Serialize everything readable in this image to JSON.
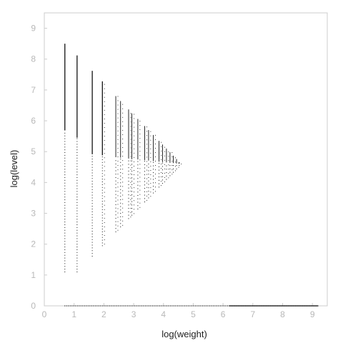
{
  "chart_data": {
    "type": "scatter",
    "title": "",
    "xlabel": "log(weight)",
    "ylabel": "log(level)",
    "xlim": [
      0,
      9.5
    ],
    "ylim": [
      0,
      9.5
    ],
    "xticks": [
      "0",
      "1",
      "2",
      "3",
      "4",
      "5",
      "6",
      "7",
      "8",
      "9"
    ],
    "yticks": [
      "0",
      "1",
      "2",
      "3",
      "4",
      "5",
      "6",
      "7",
      "8",
      "9"
    ],
    "grid": false,
    "legend": "none",
    "point_color": "#111111",
    "axis_color": "#cccccc",
    "tick_label_color": "#b8b8b8",
    "columns": [
      {
        "x": 0.69,
        "ymin": 1.1,
        "ymax": 8.5
      },
      {
        "x": 1.1,
        "ymin": 1.1,
        "ymax": 8.12
      },
      {
        "x": 1.61,
        "ymin": 1.61,
        "ymax": 7.62
      },
      {
        "x": 1.95,
        "ymin": 1.95,
        "ymax": 7.28
      },
      {
        "x": 2.4,
        "ymin": 2.4,
        "ymax": 6.8
      },
      {
        "x": 2.56,
        "ymin": 2.56,
        "ymax": 6.64
      },
      {
        "x": 2.83,
        "ymin": 2.83,
        "ymax": 6.37
      },
      {
        "x": 2.94,
        "ymin": 2.94,
        "ymax": 6.24
      },
      {
        "x": 3.14,
        "ymin": 3.14,
        "ymax": 6.06
      },
      {
        "x": 3.37,
        "ymin": 3.37,
        "ymax": 5.83
      },
      {
        "x": 3.5,
        "ymin": 3.5,
        "ymax": 5.7
      },
      {
        "x": 3.66,
        "ymin": 3.66,
        "ymax": 5.54
      },
      {
        "x": 3.85,
        "ymin": 3.85,
        "ymax": 5.35
      },
      {
        "x": 3.97,
        "ymin": 3.97,
        "ymax": 5.23
      },
      {
        "x": 4.1,
        "ymin": 4.1,
        "ymax": 5.1
      },
      {
        "x": 4.22,
        "ymin": 4.22,
        "ymax": 4.98
      },
      {
        "x": 4.33,
        "ymin": 4.33,
        "ymax": 4.87
      },
      {
        "x": 4.44,
        "ymin": 4.44,
        "ymax": 4.76
      },
      {
        "x": 4.53,
        "ymin": 4.55,
        "ymax": 4.66
      }
    ],
    "baseline": {
      "y": 0,
      "xmin": 0.69,
      "xmax": 9.2
    }
  }
}
